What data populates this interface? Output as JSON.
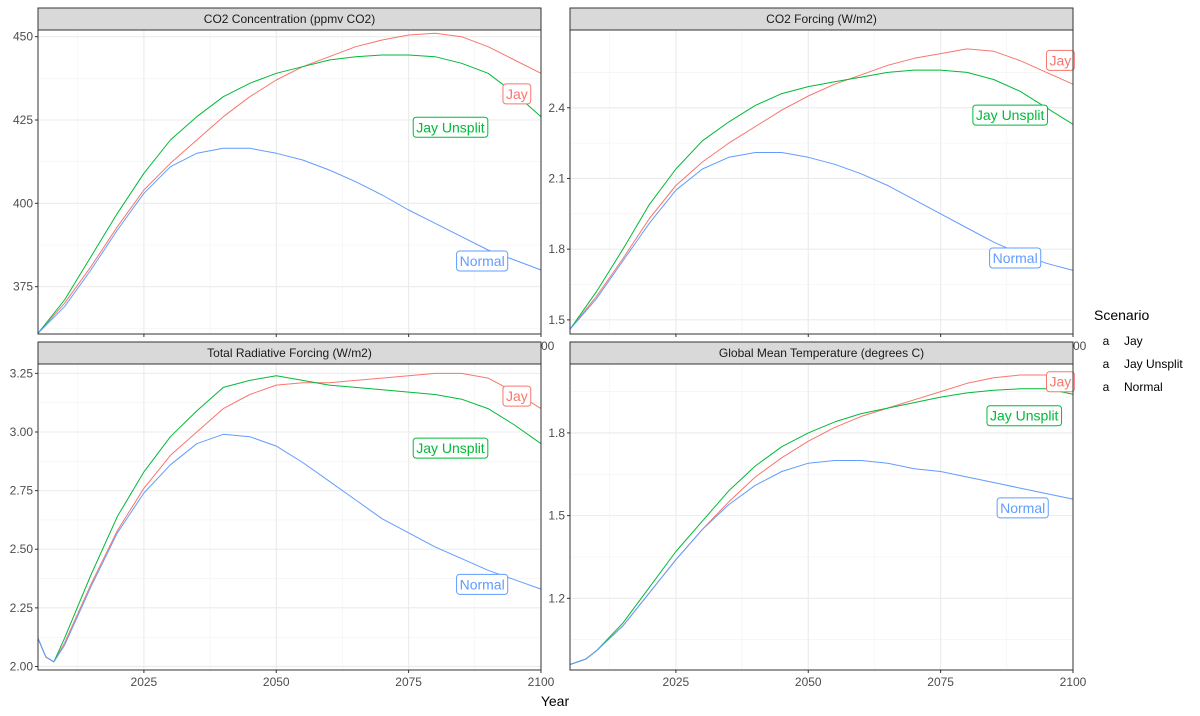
{
  "colors": {
    "Jay": "#F8766D",
    "Jay Unsplit": "#00BA38",
    "Normal": "#619CFF"
  },
  "xlabel": "Year",
  "legend": {
    "title": "Scenario",
    "placement": "right",
    "glyph": "a",
    "items": [
      "Jay",
      "Jay Unsplit",
      "Normal"
    ]
  },
  "chart_data": [
    {
      "type": "line",
      "title": "CO2 Concentration (ppmv CO2)",
      "xlim": [
        2005,
        2100
      ],
      "ylim": [
        360.8,
        452
      ],
      "xticks": [
        2025,
        2050,
        2075,
        2100
      ],
      "yticks": [
        375,
        400,
        425,
        450
      ],
      "grid": true,
      "series": [
        {
          "name": "Jay",
          "label": "Jay",
          "x": [
            2005,
            2010,
            2015,
            2020,
            2025,
            2030,
            2035,
            2040,
            2045,
            2050,
            2055,
            2060,
            2065,
            2070,
            2075,
            2080,
            2085,
            2090,
            2095,
            2100
          ],
          "y": [
            361,
            370,
            381,
            393,
            404,
            412,
            419,
            426,
            432,
            437,
            441,
            444,
            447,
            449,
            450.5,
            451,
            450,
            447,
            443,
            439
          ]
        },
        {
          "name": "Jay Unsplit",
          "label": "Jay Unsplit",
          "x": [
            2005,
            2010,
            2015,
            2020,
            2025,
            2030,
            2035,
            2040,
            2045,
            2050,
            2055,
            2060,
            2065,
            2070,
            2075,
            2080,
            2085,
            2090,
            2095,
            2100
          ],
          "y": [
            361,
            371,
            384,
            397,
            409,
            419,
            426,
            432,
            436,
            439,
            441,
            443,
            444,
            444.5,
            444.5,
            444,
            442,
            439,
            433,
            426
          ]
        },
        {
          "name": "Normal",
          "label": "Normal",
          "x": [
            2005,
            2010,
            2015,
            2020,
            2025,
            2030,
            2035,
            2040,
            2045,
            2050,
            2055,
            2060,
            2065,
            2070,
            2075,
            2080,
            2085,
            2090,
            2095,
            2100
          ],
          "y": [
            361,
            369,
            380,
            392,
            403,
            411,
            415,
            416.5,
            416.5,
            415,
            413,
            410,
            406.5,
            402.5,
            398,
            394,
            390,
            386,
            383,
            380
          ]
        }
      ]
    },
    {
      "type": "line",
      "title": "CO2 Forcing (W/m2)",
      "xlim": [
        2005,
        2100
      ],
      "ylim": [
        1.44,
        2.73
      ],
      "xticks": [
        2025,
        2050,
        2075,
        2100
      ],
      "yticks": [
        1.5,
        1.8,
        2.1,
        2.4
      ],
      "grid": true,
      "series": [
        {
          "name": "Jay",
          "label": "Jay",
          "x": [
            2005,
            2010,
            2015,
            2020,
            2025,
            2030,
            2035,
            2040,
            2045,
            2050,
            2055,
            2060,
            2065,
            2070,
            2075,
            2080,
            2085,
            2090,
            2095,
            2100
          ],
          "y": [
            1.46,
            1.6,
            1.76,
            1.93,
            2.07,
            2.17,
            2.25,
            2.32,
            2.39,
            2.45,
            2.5,
            2.54,
            2.58,
            2.61,
            2.63,
            2.65,
            2.64,
            2.6,
            2.55,
            2.5
          ]
        },
        {
          "name": "Jay Unsplit",
          "label": "Jay Unsplit",
          "x": [
            2005,
            2010,
            2015,
            2020,
            2025,
            2030,
            2035,
            2040,
            2045,
            2050,
            2055,
            2060,
            2065,
            2070,
            2075,
            2080,
            2085,
            2090,
            2095,
            2100
          ],
          "y": [
            1.46,
            1.62,
            1.8,
            1.99,
            2.14,
            2.26,
            2.34,
            2.41,
            2.46,
            2.49,
            2.51,
            2.53,
            2.55,
            2.56,
            2.56,
            2.55,
            2.52,
            2.47,
            2.4,
            2.33
          ]
        },
        {
          "name": "Normal",
          "label": "Normal",
          "x": [
            2005,
            2010,
            2015,
            2020,
            2025,
            2030,
            2035,
            2040,
            2045,
            2050,
            2055,
            2060,
            2065,
            2070,
            2075,
            2080,
            2085,
            2090,
            2095,
            2100
          ],
          "y": [
            1.46,
            1.59,
            1.75,
            1.91,
            2.05,
            2.14,
            2.19,
            2.21,
            2.21,
            2.19,
            2.16,
            2.12,
            2.07,
            2.01,
            1.95,
            1.89,
            1.83,
            1.78,
            1.74,
            1.71
          ]
        }
      ]
    },
    {
      "type": "line",
      "title": "Total Radiative Forcing (W/m2)",
      "xlim": [
        2005,
        2100
      ],
      "ylim": [
        1.985,
        3.29
      ],
      "xticks": [
        2025,
        2050,
        2075,
        2100
      ],
      "yticks": [
        2.0,
        2.25,
        2.5,
        2.75,
        3.0,
        3.25
      ],
      "ytick_labels": [
        "2.00",
        "2.25",
        "2.50",
        "2.75",
        "3.00",
        "3.25"
      ],
      "grid": true,
      "series": [
        {
          "name": "Jay",
          "label": "Jay",
          "x": [
            2005,
            2006.5,
            2008,
            2010,
            2015,
            2020,
            2025,
            2030,
            2035,
            2040,
            2045,
            2050,
            2055,
            2060,
            2065,
            2070,
            2075,
            2080,
            2085,
            2090,
            2095,
            2100
          ],
          "y": [
            2.12,
            2.04,
            2.02,
            2.1,
            2.35,
            2.58,
            2.76,
            2.9,
            3.0,
            3.1,
            3.16,
            3.2,
            3.21,
            3.21,
            3.22,
            3.23,
            3.24,
            3.25,
            3.25,
            3.23,
            3.17,
            3.1
          ]
        },
        {
          "name": "Jay Unsplit",
          "label": "Jay Unsplit",
          "x": [
            2005,
            2006.5,
            2008,
            2010,
            2015,
            2020,
            2025,
            2030,
            2035,
            2040,
            2045,
            2050,
            2055,
            2060,
            2065,
            2070,
            2075,
            2080,
            2085,
            2090,
            2095,
            2100
          ],
          "y": [
            2.12,
            2.04,
            2.02,
            2.12,
            2.39,
            2.64,
            2.83,
            2.98,
            3.09,
            3.19,
            3.22,
            3.24,
            3.22,
            3.2,
            3.19,
            3.18,
            3.17,
            3.16,
            3.14,
            3.1,
            3.03,
            2.95
          ]
        },
        {
          "name": "Normal",
          "label": "Normal",
          "x": [
            2005,
            2006.5,
            2008,
            2010,
            2015,
            2020,
            2025,
            2030,
            2035,
            2040,
            2045,
            2050,
            2055,
            2060,
            2065,
            2070,
            2075,
            2080,
            2085,
            2090,
            2095,
            2100
          ],
          "y": [
            2.12,
            2.04,
            2.02,
            2.09,
            2.34,
            2.57,
            2.74,
            2.86,
            2.95,
            2.99,
            2.98,
            2.94,
            2.87,
            2.79,
            2.71,
            2.63,
            2.57,
            2.51,
            2.46,
            2.41,
            2.37,
            2.33
          ]
        }
      ]
    },
    {
      "type": "line",
      "title": "Global Mean Temperature (degrees C)",
      "xlim": [
        2005,
        2100
      ],
      "ylim": [
        0.94,
        2.05
      ],
      "xticks": [
        2025,
        2050,
        2075,
        2100
      ],
      "yticks": [
        1.2,
        1.5,
        1.8
      ],
      "grid": true,
      "series": [
        {
          "name": "Jay",
          "label": "Jay",
          "x": [
            2005,
            2008,
            2010,
            2015,
            2020,
            2025,
            2030,
            2035,
            2040,
            2045,
            2050,
            2055,
            2060,
            2065,
            2070,
            2075,
            2080,
            2085,
            2090,
            2095,
            2100
          ],
          "y": [
            0.96,
            0.98,
            1.01,
            1.1,
            1.22,
            1.34,
            1.45,
            1.55,
            1.64,
            1.71,
            1.77,
            1.82,
            1.86,
            1.89,
            1.92,
            1.95,
            1.98,
            2.0,
            2.01,
            2.01,
            2.0
          ]
        },
        {
          "name": "Jay Unsplit",
          "label": "Jay Unsplit",
          "x": [
            2005,
            2008,
            2010,
            2015,
            2020,
            2025,
            2030,
            2035,
            2040,
            2045,
            2050,
            2055,
            2060,
            2065,
            2070,
            2075,
            2080,
            2085,
            2090,
            2095,
            2100
          ],
          "y": [
            0.96,
            0.98,
            1.01,
            1.11,
            1.24,
            1.37,
            1.48,
            1.59,
            1.68,
            1.75,
            1.8,
            1.84,
            1.87,
            1.89,
            1.91,
            1.93,
            1.945,
            1.955,
            1.96,
            1.96,
            1.94
          ]
        },
        {
          "name": "Normal",
          "label": "Normal",
          "x": [
            2005,
            2008,
            2010,
            2015,
            2020,
            2025,
            2030,
            2035,
            2040,
            2045,
            2050,
            2055,
            2060,
            2065,
            2070,
            2075,
            2080,
            2085,
            2090,
            2095,
            2100
          ],
          "y": [
            0.96,
            0.98,
            1.01,
            1.1,
            1.22,
            1.34,
            1.45,
            1.54,
            1.61,
            1.66,
            1.69,
            1.7,
            1.7,
            1.69,
            1.67,
            1.66,
            1.64,
            1.62,
            1.6,
            1.58,
            1.56
          ]
        }
      ]
    }
  ]
}
